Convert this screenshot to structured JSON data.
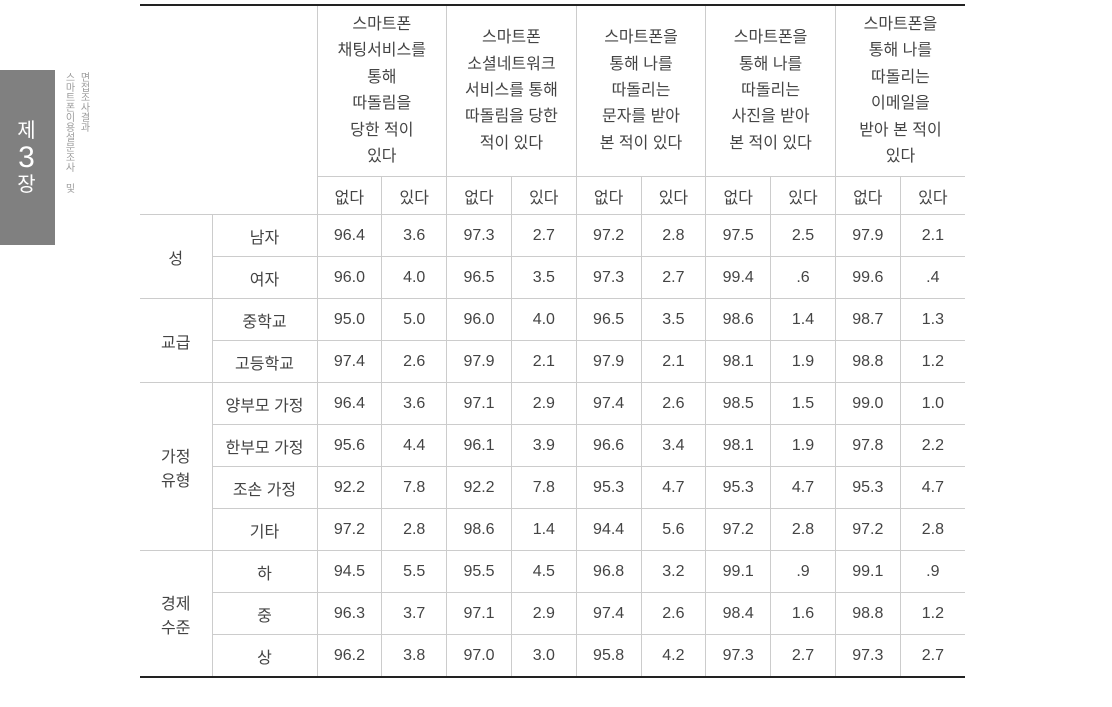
{
  "sidebar": {
    "chapter_prefix": "제",
    "chapter_number": "3",
    "chapter_suffix": "장",
    "caption_a": "스마트폰이용설문조사 및",
    "caption_b": "면접조사결과"
  },
  "table": {
    "group_headers": [
      "스마트폰\n채팅서비스를\n통해\n따돌림을\n당한 적이\n있다",
      "스마트폰\n소셜네트워크\n서비스를 통해\n따돌림을 당한\n적이 있다",
      "스마트폰을\n통해 나를\n따돌리는\n문자를 받아\n본 적이 있다",
      "스마트폰을\n통해 나를\n따돌리는\n사진을 받아\n본 적이 있다",
      "스마트폰을\n통해 나를\n따돌리는\n이메일을\n받아 본 적이\n있다"
    ],
    "sub_headers": [
      "없다",
      "있다"
    ],
    "row_groups": [
      {
        "label": "성",
        "rows": [
          {
            "label": "남자",
            "values": [
              "96.4",
              "3.6",
              "97.3",
              "2.7",
              "97.2",
              "2.8",
              "97.5",
              "2.5",
              "97.9",
              "2.1"
            ]
          },
          {
            "label": "여자",
            "values": [
              "96.0",
              "4.0",
              "96.5",
              "3.5",
              "97.3",
              "2.7",
              "99.4",
              ".6",
              "99.6",
              ".4"
            ]
          }
        ]
      },
      {
        "label": "교급",
        "rows": [
          {
            "label": "중학교",
            "values": [
              "95.0",
              "5.0",
              "96.0",
              "4.0",
              "96.5",
              "3.5",
              "98.6",
              "1.4",
              "98.7",
              "1.3"
            ]
          },
          {
            "label": "고등학교",
            "values": [
              "97.4",
              "2.6",
              "97.9",
              "2.1",
              "97.9",
              "2.1",
              "98.1",
              "1.9",
              "98.8",
              "1.2"
            ]
          }
        ]
      },
      {
        "label": "가정\n유형",
        "rows": [
          {
            "label": "양부모 가정",
            "values": [
              "96.4",
              "3.6",
              "97.1",
              "2.9",
              "97.4",
              "2.6",
              "98.5",
              "1.5",
              "99.0",
              "1.0"
            ]
          },
          {
            "label": "한부모 가정",
            "values": [
              "95.6",
              "4.4",
              "96.1",
              "3.9",
              "96.6",
              "3.4",
              "98.1",
              "1.9",
              "97.8",
              "2.2"
            ]
          },
          {
            "label": "조손 가정",
            "values": [
              "92.2",
              "7.8",
              "92.2",
              "7.8",
              "95.3",
              "4.7",
              "95.3",
              "4.7",
              "95.3",
              "4.7"
            ]
          },
          {
            "label": "기타",
            "values": [
              "97.2",
              "2.8",
              "98.6",
              "1.4",
              "94.4",
              "5.6",
              "97.2",
              "2.8",
              "97.2",
              "2.8"
            ]
          }
        ]
      },
      {
        "label": "경제\n수준",
        "rows": [
          {
            "label": "하",
            "values": [
              "94.5",
              "5.5",
              "95.5",
              "4.5",
              "96.8",
              "3.2",
              "99.1",
              ".9",
              "99.1",
              ".9"
            ]
          },
          {
            "label": "중",
            "values": [
              "96.3",
              "3.7",
              "97.1",
              "2.9",
              "97.4",
              "2.6",
              "98.4",
              "1.6",
              "98.8",
              "1.2"
            ]
          },
          {
            "label": "상",
            "values": [
              "96.2",
              "3.8",
              "97.0",
              "3.0",
              "95.8",
              "4.2",
              "97.3",
              "2.7",
              "97.3",
              "2.7"
            ]
          }
        ]
      }
    ]
  },
  "style": {
    "border_color": "#cccccc",
    "rule_color": "#222222",
    "text_color": "#444444",
    "sidebar_bg": "#808080",
    "sidebar_fg": "#ffffff",
    "caption_color": "#9a9a9a",
    "font_size_body": 16,
    "font_size_caption": 10
  }
}
